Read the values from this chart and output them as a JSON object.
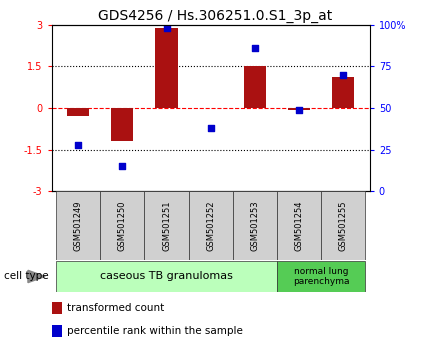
{
  "title": "GDS4256 / Hs.306251.0.S1_3p_at",
  "samples": [
    "GSM501249",
    "GSM501250",
    "GSM501251",
    "GSM501252",
    "GSM501253",
    "GSM501254",
    "GSM501255"
  ],
  "transformed_counts": [
    -0.3,
    -1.2,
    2.9,
    0.0,
    1.5,
    -0.07,
    1.1
  ],
  "percentile_ranks": [
    28,
    15,
    98,
    38,
    86,
    49,
    70
  ],
  "ylim_left": [
    -3,
    3
  ],
  "ylim_right": [
    0,
    100
  ],
  "yticks_left": [
    -3,
    -1.5,
    0,
    1.5,
    3
  ],
  "yticks_right": [
    0,
    25,
    50,
    75,
    100
  ],
  "ytick_labels_right": [
    "0",
    "25",
    "50",
    "75",
    "100%"
  ],
  "bar_color": "#aa1111",
  "dot_color": "#0000cc",
  "bar_width": 0.5,
  "group1_label": "caseous TB granulomas",
  "group2_label": "normal lung\nparenchyma",
  "group1_color": "#bbffbb",
  "group2_color": "#55cc55",
  "cell_type_label": "cell type",
  "legend_items": [
    {
      "color": "#aa1111",
      "label": "transformed count"
    },
    {
      "color": "#0000cc",
      "label": "percentile rank within the sample"
    }
  ],
  "title_fontsize": 10,
  "tick_fontsize": 7,
  "sample_fontsize": 6,
  "group_fontsize": 8,
  "legend_fontsize": 7.5
}
